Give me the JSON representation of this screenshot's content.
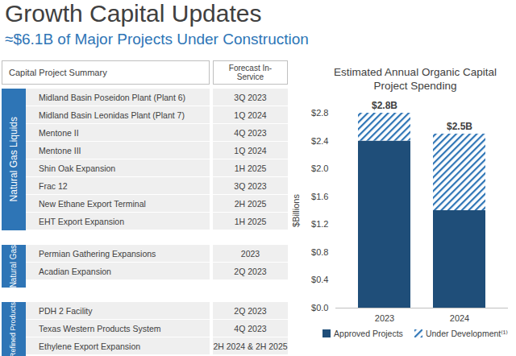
{
  "header": {
    "title": "Growth Capital Updates",
    "subtitle": "≈$6.1B of Major Projects Under Construction"
  },
  "table": {
    "columns": [
      "Capital Project Summary",
      "Forecast In-Service"
    ],
    "groups": [
      {
        "name": "Natural Gas Liquids",
        "rows": [
          [
            "Midland Basin Poseidon Plant (Plant 6)",
            "3Q 2023"
          ],
          [
            "Midland Basin Leonidas Plant (Plant 7)",
            "1Q 2024"
          ],
          [
            "Mentone II",
            "4Q 2023"
          ],
          [
            "Mentone III",
            "1Q 2024"
          ],
          [
            "Shin Oak Expansion",
            "1H 2025"
          ],
          [
            "Frac 12",
            "3Q 2023"
          ],
          [
            "New Ethane Export Terminal",
            "2H 2025"
          ],
          [
            "EHT Export Expansion",
            "1H 2025"
          ]
        ]
      },
      {
        "name": "Natural Gas",
        "rows": [
          [
            "Permian Gathering Expansions",
            "2023"
          ],
          [
            "Acadian Expansion",
            "2Q 2023"
          ]
        ]
      },
      {
        "name": "Petchem & Refined Products",
        "rows": [
          [
            "PDH 2 Facility",
            "2Q 2023"
          ],
          [
            "Texas Western Products System",
            "4Q 2023"
          ],
          [
            "Ethylene Export Expansion",
            "2H 2024 & 2H 2025"
          ]
        ]
      }
    ]
  },
  "chart_data": {
    "type": "bar",
    "title": "Estimated Annual Organic Capital Project Spending",
    "ylabel": "$Billions",
    "categories": [
      "2023",
      "2024"
    ],
    "series": [
      {
        "name": "Approved Projects",
        "color": "#1f4e79",
        "values": [
          2.4,
          1.4
        ]
      },
      {
        "name": "Under Development⁽¹⁾",
        "color": "#2e75b6",
        "values": [
          0.4,
          1.1
        ]
      }
    ],
    "totals": [
      2.8,
      2.5
    ],
    "total_labels": [
      "$2.8B",
      "$2.5B"
    ],
    "stacked": true,
    "ylim": [
      0,
      2.8
    ],
    "yticks": [
      {
        "value": 0,
        "label": "$0.0"
      },
      {
        "value": 0.4,
        "label": "$0.4"
      },
      {
        "value": 0.8,
        "label": "$0.8"
      },
      {
        "value": 1.2,
        "label": "$1.2"
      },
      {
        "value": 1.6,
        "label": "$1.6"
      },
      {
        "value": 2.0,
        "label": "$2.0"
      },
      {
        "value": 2.4,
        "label": "$2.4"
      },
      {
        "value": 2.8,
        "label": "$2.8"
      }
    ],
    "grid": false,
    "legend": "bottom"
  }
}
